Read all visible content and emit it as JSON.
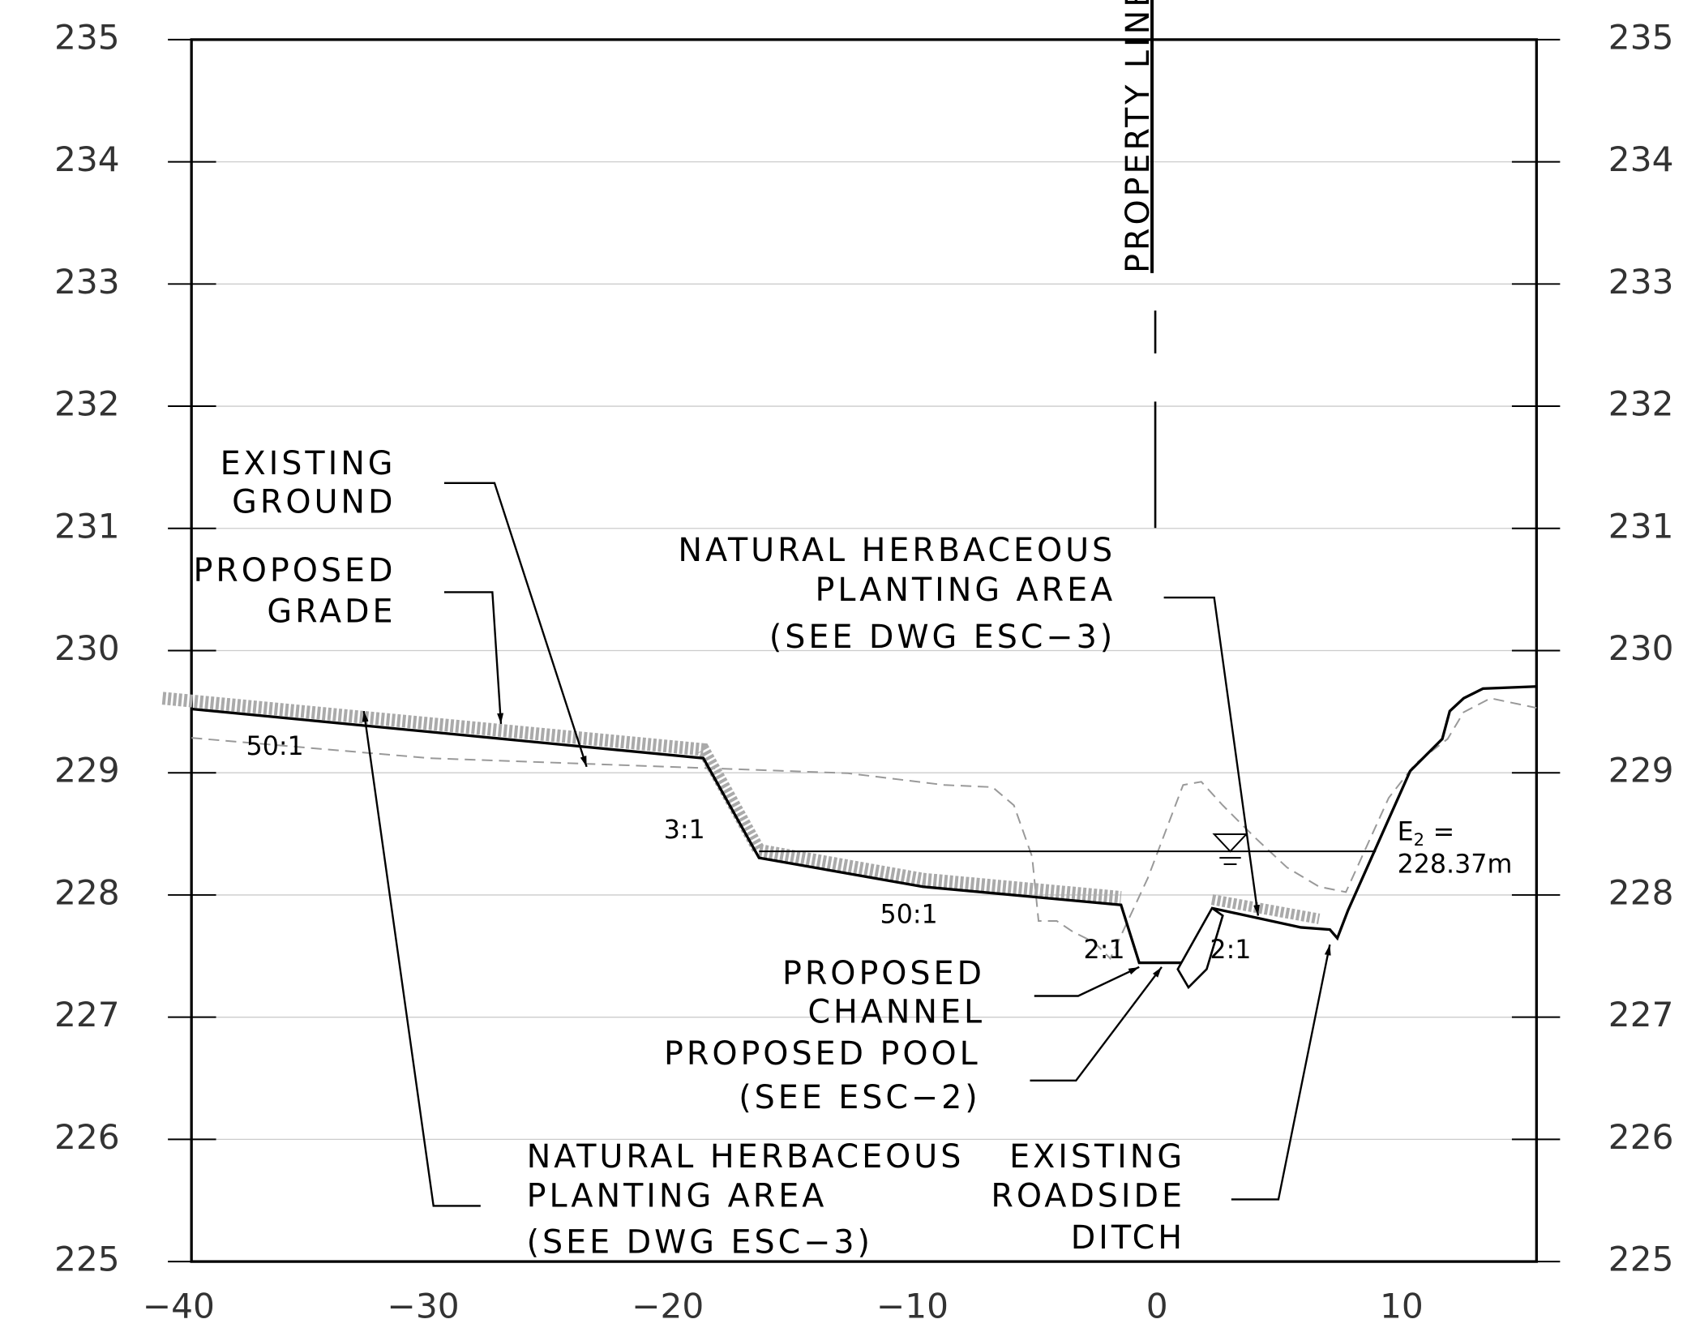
{
  "axis": {
    "yticks": [
      "235",
      "234",
      "233",
      "232",
      "231",
      "230",
      "229",
      "228",
      "227",
      "226",
      "225"
    ],
    "xticks": [
      "−40",
      "−30",
      "−20",
      "−10",
      "0",
      "10"
    ]
  },
  "annotations": {
    "existing_ground": [
      "EXISTING",
      "GROUND"
    ],
    "proposed_grade": [
      "PROPOSED",
      "GRADE"
    ],
    "planting_area_right": [
      "NATURAL HERBACEOUS",
      "PLANTING AREA",
      "(SEE DWG ESC−3)"
    ],
    "proposed_channel": [
      "PROPOSED",
      "CHANNEL"
    ],
    "proposed_pool": [
      "PROPOSED POOL",
      "(SEE ESC−2)"
    ],
    "planting_area_left": [
      "NATURAL HERBACEOUS",
      "PLANTING AREA",
      "(SEE DWG ESC−3)"
    ],
    "roadside_ditch": [
      "EXISTING",
      "ROADSIDE",
      "DITCH"
    ],
    "property_line": "PROPERTY LINE",
    "slopes": [
      "50:1",
      "3:1",
      "50:1",
      "2:1",
      "2:1"
    ],
    "water_surface": {
      "symbol": "E",
      "subscript": "2",
      "equals": "=",
      "value": "228.37m"
    }
  }
}
